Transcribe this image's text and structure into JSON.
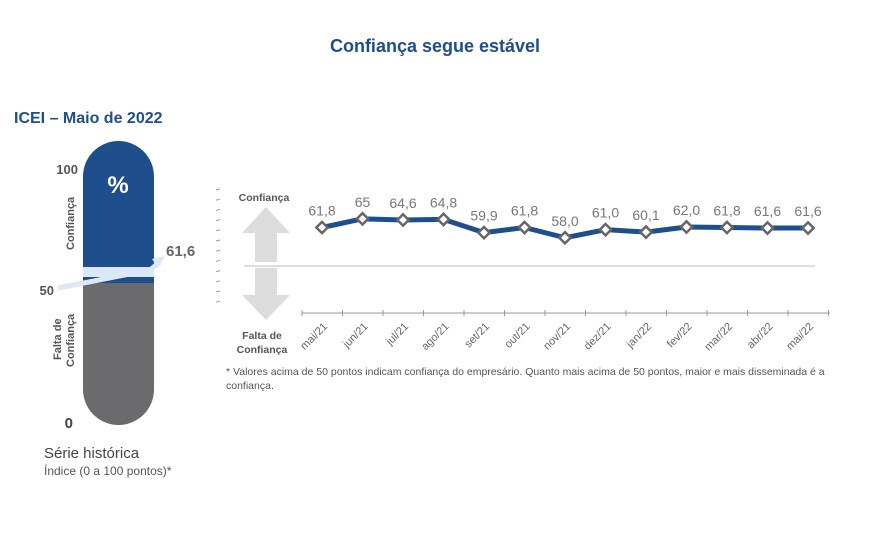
{
  "header": {
    "title": "Confiança segue estável",
    "subtitle": "ICEI – Maio de 2022"
  },
  "gauge": {
    "symbol": "%",
    "scale_top": "100",
    "scale_mid": "50",
    "scale_bottom": "0",
    "label_top": "Confiança",
    "label_bottom_line1": "Falta de",
    "label_bottom_line2": "Confiança",
    "value": 61.6,
    "value_label": "61,6",
    "colors": {
      "confidence": "#1f4e8c",
      "lack": "#6b6b6e",
      "stripe": "#dbe8f5"
    }
  },
  "footer_left": {
    "serie": "Série histórica",
    "indice": "Índice (0 a 100 pontos)*"
  },
  "note": "* Valores acima de 50 pontos indicam confiança do empresário. Quanto mais acima de 50 pontos, maior e mais disseminada é a confiança.",
  "chart_data": {
    "type": "line",
    "title": "Confiança segue estável",
    "xlabel": "",
    "ylabel": "",
    "x": [
      "mai/21",
      "jun/21",
      "jul/21",
      "ago/21",
      "set/21",
      "out/21",
      "nov/21",
      "dez/21",
      "jan/22",
      "fev/22",
      "mar/22",
      "abr/22",
      "mai/22"
    ],
    "series": [
      {
        "name": "ICEI",
        "values": [
          61.8,
          65,
          64.6,
          64.8,
          59.9,
          61.8,
          58.0,
          61.0,
          60.1,
          62.0,
          61.8,
          61.6,
          61.6
        ],
        "labels": [
          "61,8",
          "65",
          "64,6",
          "64,8",
          "59,9",
          "61,8",
          "58,0",
          "61,0",
          "60,1",
          "62,0",
          "61,8",
          "61,6",
          "61,6"
        ],
        "color": "#1f4e8c"
      }
    ],
    "reference_line": 50,
    "axis_labels": {
      "top": "Confiança",
      "bottom_line1": "Falta de",
      "bottom_line2": "Confiança"
    },
    "ylim": [
      30,
      70
    ],
    "grid": false,
    "legend": "none"
  }
}
